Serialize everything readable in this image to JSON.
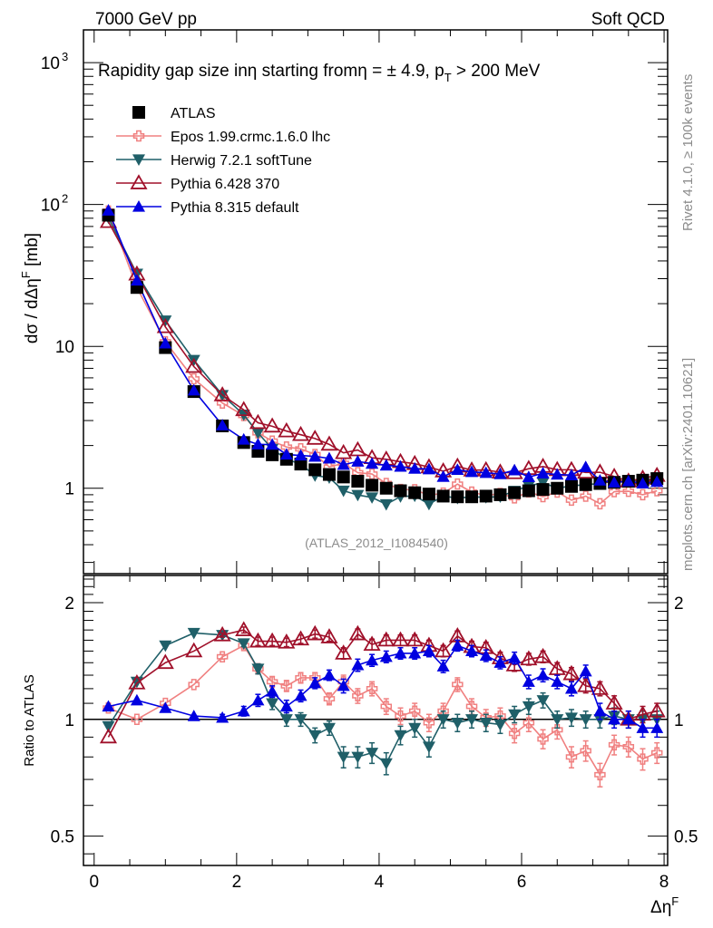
{
  "header": {
    "left": "7000 GeV pp",
    "right": "Soft QCD"
  },
  "side_labels": {
    "rivet": "Rivet 4.1.0, ≥ 100k events",
    "mcplots": "mcplots.cern.ch [arXiv:2401.10621]"
  },
  "analysis_id": "(ATLAS_2012_I1084540)",
  "chart_data": [
    {
      "type": "scatter",
      "panel": "main",
      "title": "Rapidity gap size in η starting from η = ± 4.9, p_T > 200 MeV",
      "title_parts": {
        "a": "Rapidity gap size in",
        "b": "η",
        "c": " starting from",
        "d": "η = ± 4.9, p",
        "sub": "T",
        "e": " > 200 MeV"
      },
      "xlabel": "Δη^F",
      "ylabel": "dσ / dΔη^F [mb]",
      "ylabel_parts": {
        "main": "dσ / dΔη",
        "sup": "F",
        "unit": " [mb]"
      },
      "yscale": "log",
      "xlim": [
        -0.15,
        8.05
      ],
      "ylim": [
        0.25,
        1700
      ],
      "ytick_labels": [
        {
          "v": 1000,
          "base": "10",
          "exp": "3"
        },
        {
          "v": 100,
          "base": "10",
          "exp": "2"
        },
        {
          "v": 10,
          "base": "10",
          "exp": ""
        },
        {
          "v": 1,
          "base": "1",
          "exp": ""
        }
      ],
      "legend_position": "top-left",
      "x": [
        0.2,
        0.6,
        1.0,
        1.4,
        1.8,
        2.1,
        2.3,
        2.5,
        2.7,
        2.9,
        3.1,
        3.3,
        3.5,
        3.7,
        3.9,
        4.1,
        4.3,
        4.5,
        4.7,
        4.9,
        5.1,
        5.3,
        5.5,
        5.7,
        5.9,
        6.1,
        6.3,
        6.5,
        6.7,
        6.9,
        7.1,
        7.3,
        7.5,
        7.7,
        7.9
      ],
      "series": [
        {
          "name": "ATLAS",
          "key": "atlas",
          "color": "#000000",
          "marker": "square",
          "values": [
            84,
            26,
            9.8,
            4.8,
            2.75,
            2.1,
            1.82,
            1.72,
            1.6,
            1.48,
            1.35,
            1.25,
            1.2,
            1.12,
            1.05,
            1.0,
            0.96,
            0.93,
            0.91,
            0.88,
            0.87,
            0.87,
            0.88,
            0.9,
            0.93,
            0.96,
            0.98,
            1.0,
            1.03,
            1.06,
            1.08,
            1.1,
            1.12,
            1.14,
            1.17
          ]
        }
      ]
    },
    {
      "type": "line",
      "panel": "ratio",
      "ylabel": "Ratio to ATLAS",
      "yscale": "log",
      "ylim": [
        0.42,
        2.35
      ],
      "ytick_labels": [
        "2",
        "1",
        "0.5"
      ],
      "ytick_values": [
        2,
        1,
        0.5
      ],
      "xlim": [
        -0.15,
        8.05
      ],
      "xtick_labels": [
        "0",
        "2",
        "4",
        "6",
        "8"
      ],
      "xtick_values": [
        0,
        2,
        4,
        6,
        8
      ],
      "reference_line": 1,
      "x": [
        0.2,
        0.6,
        1.0,
        1.4,
        1.8,
        2.1,
        2.3,
        2.5,
        2.7,
        2.9,
        3.1,
        3.3,
        3.5,
        3.7,
        3.9,
        4.1,
        4.3,
        4.5,
        4.7,
        4.9,
        5.1,
        5.3,
        5.5,
        5.7,
        5.9,
        6.1,
        6.3,
        6.5,
        6.7,
        6.9,
        7.1,
        7.3,
        7.5,
        7.7,
        7.9
      ],
      "series": [
        {
          "name": "Epos 1.99.crmc.1.6.0 lhc",
          "key": "epos",
          "color": "#f08080",
          "marker": "open-cross",
          "values": [
            1.07,
            1.0,
            1.1,
            1.23,
            1.45,
            1.55,
            1.35,
            1.25,
            1.22,
            1.28,
            1.28,
            1.13,
            1.25,
            1.15,
            1.2,
            1.08,
            1.02,
            1.05,
            0.98,
            1.05,
            1.23,
            1.08,
            1.01,
            1.02,
            0.92,
            0.98,
            0.89,
            0.94,
            0.8,
            0.83,
            0.72,
            0.86,
            0.85,
            0.79,
            0.82
          ],
          "errors": [
            0.01,
            0.01,
            0.01,
            0.01,
            0.02,
            0.03,
            0.04,
            0.04,
            0.04,
            0.04,
            0.04,
            0.04,
            0.05,
            0.05,
            0.05,
            0.05,
            0.05,
            0.05,
            0.05,
            0.05,
            0.05,
            0.05,
            0.05,
            0.05,
            0.05,
            0.05,
            0.05,
            0.05,
            0.05,
            0.05,
            0.05,
            0.05,
            0.05,
            0.05,
            0.05
          ]
        },
        {
          "name": "Herwig 7.2.1 softTune",
          "key": "herwig",
          "color": "#1f5f68",
          "marker": "filled-down-triangle",
          "values": [
            0.96,
            1.25,
            1.55,
            1.67,
            1.65,
            1.57,
            1.35,
            1.1,
            1.0,
            1.0,
            0.91,
            0.95,
            0.8,
            0.8,
            0.82,
            0.77,
            0.91,
            0.95,
            0.85,
            1.0,
            0.98,
            1.0,
            0.98,
            0.97,
            1.03,
            1.08,
            1.12,
            1.0,
            1.01,
            1.0,
            1.0,
            1.02,
            1.0,
            1.0,
            1.0
          ],
          "errors": [
            0.01,
            0.01,
            0.01,
            0.01,
            0.02,
            0.03,
            0.04,
            0.04,
            0.04,
            0.04,
            0.04,
            0.04,
            0.05,
            0.05,
            0.05,
            0.05,
            0.05,
            0.05,
            0.05,
            0.05,
            0.05,
            0.05,
            0.05,
            0.05,
            0.05,
            0.05,
            0.05,
            0.05,
            0.05,
            0.05,
            0.05,
            0.05,
            0.05,
            0.05,
            0.05
          ]
        },
        {
          "name": "Pythia 6.428 370",
          "key": "py6",
          "color": "#a0102a",
          "marker": "open-triangle",
          "values": [
            0.9,
            1.24,
            1.4,
            1.5,
            1.65,
            1.7,
            1.59,
            1.59,
            1.58,
            1.61,
            1.66,
            1.63,
            1.48,
            1.66,
            1.56,
            1.6,
            1.6,
            1.6,
            1.55,
            1.5,
            1.64,
            1.54,
            1.53,
            1.44,
            1.38,
            1.43,
            1.45,
            1.35,
            1.31,
            1.22,
            1.2,
            1.1,
            1.0,
            1.03,
            1.05
          ],
          "errors": [
            0.01,
            0.01,
            0.01,
            0.01,
            0.02,
            0.03,
            0.04,
            0.04,
            0.04,
            0.04,
            0.04,
            0.04,
            0.05,
            0.05,
            0.05,
            0.05,
            0.05,
            0.05,
            0.05,
            0.05,
            0.05,
            0.05,
            0.05,
            0.05,
            0.05,
            0.05,
            0.05,
            0.05,
            0.05,
            0.05,
            0.05,
            0.05,
            0.05,
            0.05,
            0.05
          ]
        },
        {
          "name": "Pythia 8.315 default",
          "key": "py8",
          "color": "#0000e0",
          "marker": "filled-triangle",
          "values": [
            1.08,
            1.12,
            1.07,
            1.02,
            1.01,
            1.05,
            1.12,
            1.18,
            1.08,
            1.15,
            1.24,
            1.3,
            1.22,
            1.38,
            1.42,
            1.45,
            1.48,
            1.48,
            1.5,
            1.37,
            1.55,
            1.5,
            1.46,
            1.4,
            1.44,
            1.25,
            1.3,
            1.25,
            1.2,
            1.33,
            1.05,
            1.0,
            1.0,
            0.95,
            0.95
          ],
          "errors": [
            0.01,
            0.01,
            0.01,
            0.01,
            0.02,
            0.03,
            0.04,
            0.04,
            0.04,
            0.04,
            0.04,
            0.04,
            0.05,
            0.05,
            0.05,
            0.05,
            0.05,
            0.05,
            0.05,
            0.05,
            0.05,
            0.05,
            0.05,
            0.05,
            0.05,
            0.05,
            0.05,
            0.05,
            0.05,
            0.05,
            0.05,
            0.05,
            0.05,
            0.05,
            0.05
          ]
        }
      ]
    }
  ],
  "legend": [
    {
      "label": "ATLAS",
      "key": "atlas"
    },
    {
      "label": "Epos 1.99.crmc.1.6.0 lhc",
      "key": "epos"
    },
    {
      "label": "Herwig 7.2.1 softTune",
      "key": "herwig"
    },
    {
      "label": "Pythia 6.428 370",
      "key": "py6"
    },
    {
      "label": "Pythia 8.315 default",
      "key": "py8"
    }
  ]
}
